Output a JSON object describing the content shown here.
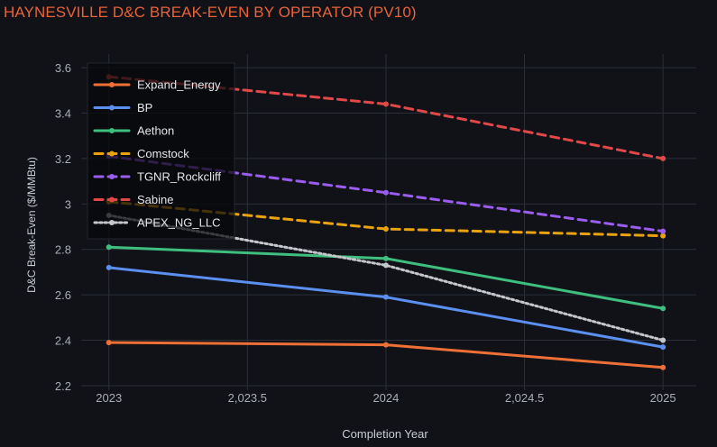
{
  "chart_data": {
    "type": "line",
    "title": "HAYNESVILLE D&C BREAK-EVEN BY OPERATOR (PV10)",
    "xlabel": "Completion Year",
    "ylabel": "D&C Break-Even ($/MMBtu)",
    "x": [
      2023,
      2024,
      2025
    ],
    "xlim": [
      2022.9,
      2025.12
    ],
    "ylim": [
      2.18,
      3.66
    ],
    "x_ticks": [
      2023,
      2023.5,
      2024,
      2024.5,
      2025
    ],
    "x_tick_labels": [
      "2023",
      "2,023.5",
      "2024",
      "2,024.5",
      "2025"
    ],
    "y_ticks": [
      2.2,
      2.4,
      2.6,
      2.8,
      3.0,
      3.2,
      3.4,
      3.6
    ],
    "y_tick_labels": [
      "2.2",
      "2.4",
      "2.6",
      "2.8",
      "3",
      "3.2",
      "3.4",
      "3.6"
    ],
    "grid": true,
    "legend_position": "top-left",
    "series": [
      {
        "name": "Expand_Energy",
        "values": [
          2.39,
          2.38,
          2.28
        ],
        "color": "#ee7036",
        "dash": "solid"
      },
      {
        "name": "BP",
        "values": [
          2.72,
          2.59,
          2.37
        ],
        "color": "#5b8ff0",
        "dash": "solid"
      },
      {
        "name": "Aethon",
        "values": [
          2.81,
          2.76,
          2.54
        ],
        "color": "#3fbf7f",
        "dash": "solid"
      },
      {
        "name": "Comstock",
        "values": [
          3.01,
          2.89,
          2.86
        ],
        "color": "#eaa30f",
        "dash": "dash"
      },
      {
        "name": "TGNR_Rockcliff",
        "values": [
          3.21,
          3.05,
          2.88
        ],
        "color": "#9b5cf0",
        "dash": "dash"
      },
      {
        "name": "Sabine",
        "values": [
          3.56,
          3.44,
          3.2
        ],
        "color": "#e24848",
        "dash": "dash"
      },
      {
        "name": "APEX_NG_LLC",
        "values": [
          2.95,
          2.73,
          2.4
        ],
        "color": "#c4c6cc",
        "dash": "dot"
      }
    ]
  }
}
